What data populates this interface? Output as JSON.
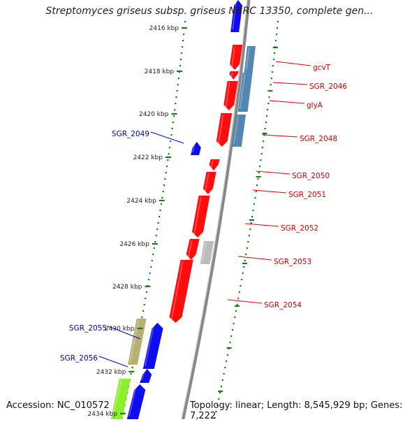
{
  "title": "Streptomyces griseus subsp. griseus NBRC 13350, complete gen...",
  "footer": {
    "accession": "Accession: NC_010572",
    "summary": "Topology: linear; Length: 8,545,929 bp; Genes: 7,222"
  },
  "colors": {
    "forward_gene": "#0000ee",
    "reverse_gene": "#ff0000",
    "reverse_label": "#cc0000",
    "forward_label": "#0000aa",
    "steelblue_feature": "#4b7fae",
    "gray_feature": "#b8b8b8",
    "khaki_feature": "#b3ad6e",
    "lime_feature": "#88ee22",
    "tick": "#1a7a1a",
    "backbone": "#888888"
  },
  "scale_ticks": [
    "2416 kbp",
    "2418 kbp",
    "2420 kbp",
    "2422 kbp",
    "2424 kbp",
    "2426 kbp",
    "2428 kbp",
    "2430 kbp",
    "2432 kbp",
    "2434 kbp"
  ],
  "gene_labels": [
    {
      "name": "gcvT",
      "strand": "reverse"
    },
    {
      "name": "SGR_2046",
      "strand": "reverse"
    },
    {
      "name": "glyA",
      "strand": "reverse"
    },
    {
      "name": "SGR_2049",
      "strand": "forward"
    },
    {
      "name": "SGR_2048",
      "strand": "reverse"
    },
    {
      "name": "SGR_2050",
      "strand": "reverse"
    },
    {
      "name": "SGR_2051",
      "strand": "reverse"
    },
    {
      "name": "SGR_2052",
      "strand": "reverse"
    },
    {
      "name": "SGR_2053",
      "strand": "reverse"
    },
    {
      "name": "SGR_2054",
      "strand": "reverse"
    },
    {
      "name": "SGR_2055",
      "strand": "forward"
    },
    {
      "name": "SGR_2056",
      "strand": "forward"
    }
  ]
}
